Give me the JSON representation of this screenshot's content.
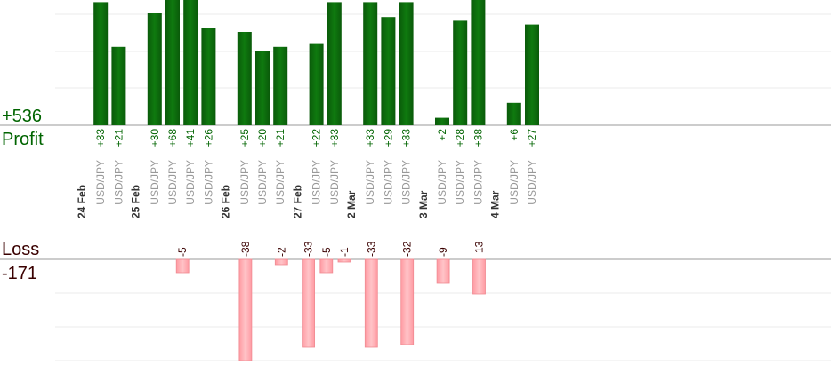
{
  "chart_data": {
    "type": "bar",
    "profit_total": "+536",
    "profit_label": "Profit",
    "loss_label": "Loss",
    "loss_total": "-171",
    "profit_color": "#0b6b0b",
    "loss_color": "#ffb3b8",
    "label_profit_color": "#006400",
    "label_loss_color": "#3a0000",
    "category": "USD/JPY",
    "days": [
      {
        "date": "24 Feb",
        "profit": [
          33,
          21
        ],
        "loss": []
      },
      {
        "date": "25 Feb",
        "profit": [
          30,
          68,
          41,
          26
        ],
        "loss": [
          -5
        ]
      },
      {
        "date": "26 Feb",
        "profit": [
          25,
          20,
          21
        ],
        "loss": [
          -38,
          -2
        ]
      },
      {
        "date": "27 Feb",
        "profit": [
          22,
          33
        ],
        "loss": [
          -33,
          -5,
          -1
        ]
      },
      {
        "date": "2 Mar",
        "profit": [
          33,
          29,
          33
        ],
        "loss": [
          -33,
          -32
        ]
      },
      {
        "date": "3 Mar",
        "profit": [
          2,
          28,
          38
        ],
        "loss": [
          -9,
          -13
        ]
      },
      {
        "date": "4 Mar",
        "profit": [
          6,
          27
        ],
        "loss": []
      }
    ]
  }
}
